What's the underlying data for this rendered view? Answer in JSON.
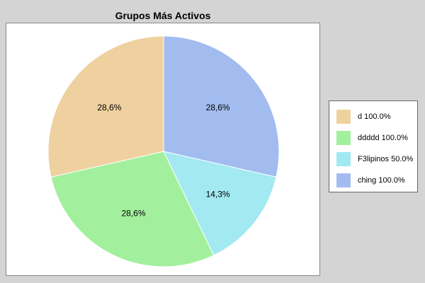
{
  "chart_data": {
    "type": "pie",
    "title": "Grupos Más Activos",
    "slices": [
      {
        "name": "d 100.0%",
        "label": "28,6%",
        "value": 28.6,
        "color": "#eed19f"
      },
      {
        "name": "ddddd 100.0%",
        "label": "28,6%",
        "value": 28.6,
        "color": "#a2f09e"
      },
      {
        "name": "F3lipinos 50.0%",
        "label": "14,3%",
        "value": 14.3,
        "color": "#a2e9f1"
      },
      {
        "name": "ching 100.0%",
        "label": "28,6%",
        "value": 28.6,
        "color": "#a2bcf0"
      }
    ],
    "draw_order": [
      3,
      2,
      1,
      0
    ],
    "start_angle_deg": 0,
    "direction": "clockwise",
    "legend_position": "right"
  }
}
